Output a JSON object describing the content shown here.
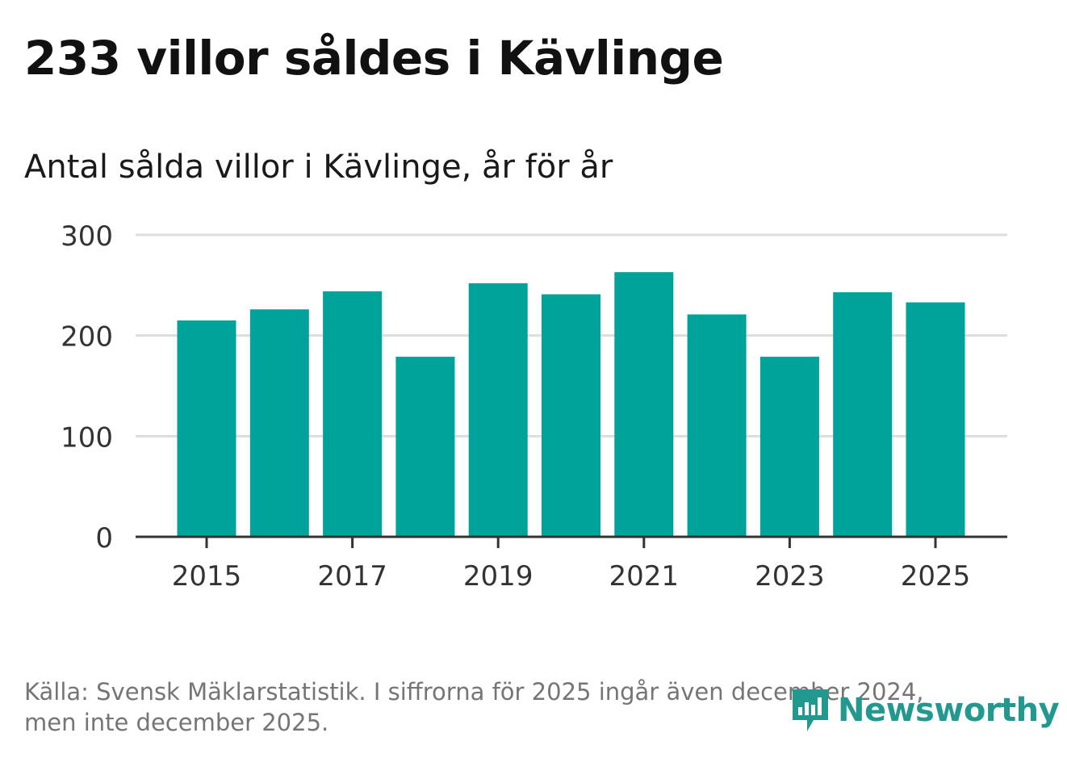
{
  "header": {
    "title": "233 villor såldes i Kävlinge",
    "subtitle": "Antal sålda villor i Kävlinge, år för år"
  },
  "footer": {
    "source_line1": "Källa: Svensk Mäklarstatistik. I siffrorna för 2025 ingår även december 2024,",
    "source_line2": "men inte december 2025.",
    "brand": "Newsworthy",
    "brand_icon": "newsworthy-logo-icon"
  },
  "colors": {
    "bar": "#00a39a",
    "grid": "#dddddd",
    "axis": "#333333",
    "brand": "#22998f"
  },
  "chart_data": {
    "type": "bar",
    "title": "Antal sålda villor i Kävlinge, år för år",
    "xlabel": "",
    "ylabel": "",
    "categories": [
      2015,
      2016,
      2017,
      2018,
      2019,
      2020,
      2021,
      2022,
      2023,
      2024,
      2025
    ],
    "values": [
      215,
      226,
      244,
      179,
      252,
      241,
      263,
      221,
      179,
      243,
      233
    ],
    "ylim": [
      0,
      300
    ],
    "yticks": [
      0,
      100,
      200,
      300
    ],
    "xticks": [
      2015,
      2017,
      2019,
      2021,
      2023,
      2025
    ],
    "grid": true,
    "legend": "none"
  }
}
